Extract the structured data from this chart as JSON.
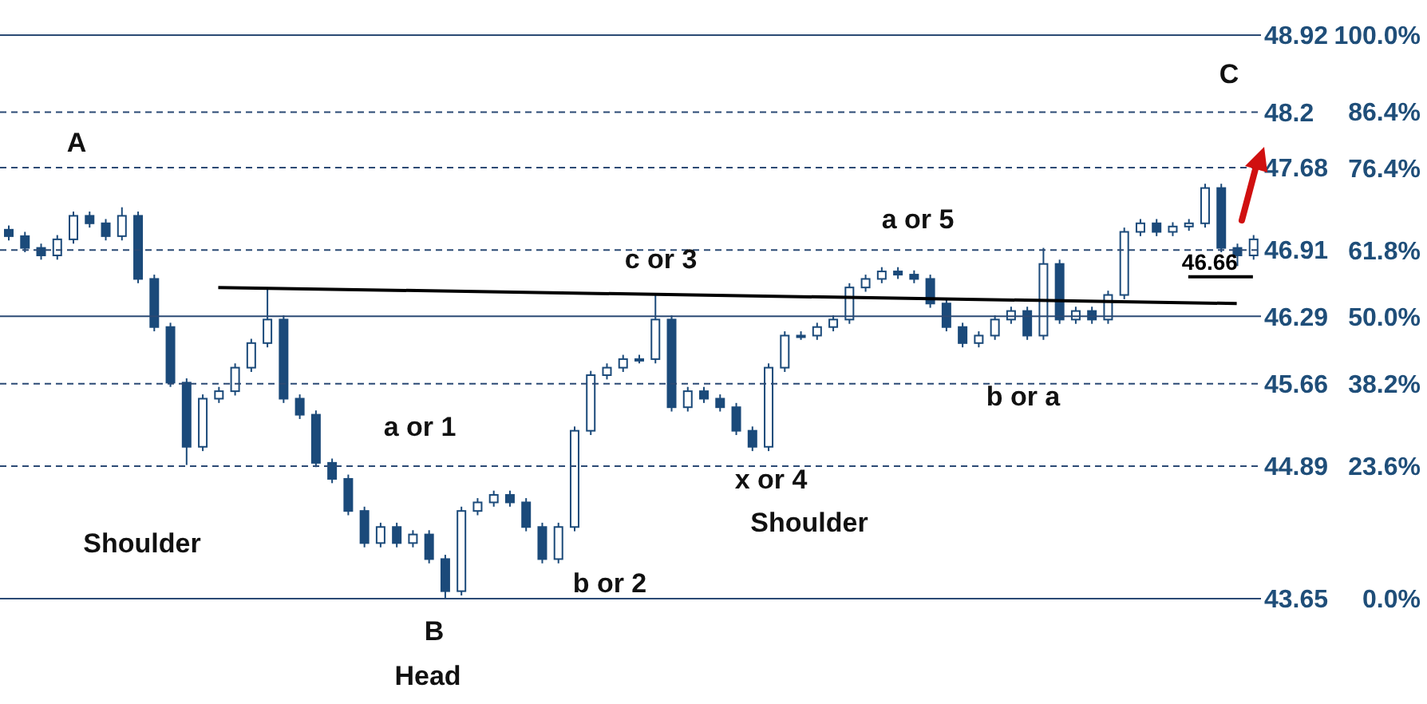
{
  "chart_data": {
    "type": "candlestick",
    "color": "#1b4a7a",
    "tick_labels": "y",
    "ylim": [
      43.65,
      48.92
    ],
    "yticks": [
      43.65,
      44.89,
      45.66,
      46.29,
      46.91,
      47.68,
      48.2,
      48.92
    ],
    "y2lim": [
      0,
      100
    ],
    "y2ticks": [
      {
        "value": 0,
        "label": "0.0%"
      },
      {
        "value": 23.6,
        "label": "23.6%"
      },
      {
        "value": 38.2,
        "label": "38.2%"
      },
      {
        "value": 50,
        "label": "50.0%"
      },
      {
        "value": 61.8,
        "label": "61.8%"
      },
      {
        "value": 76.4,
        "label": "76.4%"
      },
      {
        "value": 86.4,
        "label": "86.4%"
      },
      {
        "value": 100,
        "label": "100.0%"
      }
    ],
    "categories": [
      null,
      null,
      null,
      null,
      null,
      null,
      null,
      null,
      null,
      null,
      null,
      null,
      null,
      null,
      null,
      null,
      null,
      null,
      null,
      null,
      null,
      null,
      null,
      null,
      null,
      null,
      null,
      null,
      null,
      null,
      null,
      null,
      null,
      null,
      null,
      null,
      null,
      null,
      null,
      null,
      null,
      null,
      null,
      null,
      null,
      null,
      null,
      null,
      null,
      null,
      null,
      null,
      null,
      null,
      null,
      null,
      null,
      null,
      null,
      null,
      null,
      null,
      null,
      null,
      null,
      null,
      null,
      null,
      null,
      null,
      null,
      null,
      null,
      null,
      null,
      null,
      null,
      null
    ],
    "ohlc": [
      [
        47.1,
        47.14,
        47.0,
        47.04
      ],
      [
        47.04,
        47.08,
        46.89,
        46.93
      ],
      [
        46.93,
        46.97,
        46.82,
        46.86
      ],
      [
        46.86,
        47.05,
        46.82,
        47.01
      ],
      [
        47.01,
        47.27,
        46.97,
        47.23
      ],
      [
        47.23,
        47.27,
        47.12,
        47.16
      ],
      [
        47.16,
        47.2,
        47.0,
        47.04
      ],
      [
        47.04,
        47.31,
        47.0,
        47.23
      ],
      [
        47.23,
        47.27,
        46.6,
        46.64
      ],
      [
        46.64,
        46.68,
        46.15,
        46.19
      ],
      [
        46.19,
        46.23,
        45.63,
        45.67
      ],
      [
        45.67,
        45.71,
        44.9,
        45.07
      ],
      [
        45.07,
        45.56,
        45.03,
        45.52
      ],
      [
        45.52,
        45.63,
        45.48,
        45.59
      ],
      [
        45.59,
        45.85,
        45.55,
        45.81
      ],
      [
        45.81,
        46.08,
        45.77,
        46.04
      ],
      [
        46.04,
        46.56,
        46.0,
        46.26
      ],
      [
        46.26,
        46.3,
        45.48,
        45.52
      ],
      [
        45.52,
        45.56,
        45.33,
        45.37
      ],
      [
        45.37,
        45.41,
        44.88,
        44.92
      ],
      [
        44.92,
        44.96,
        44.73,
        44.77
      ],
      [
        44.77,
        44.81,
        44.43,
        44.47
      ],
      [
        44.47,
        44.51,
        44.13,
        44.17
      ],
      [
        44.17,
        44.36,
        44.13,
        44.32
      ],
      [
        44.32,
        44.36,
        44.13,
        44.17
      ],
      [
        44.17,
        44.29,
        44.13,
        44.25
      ],
      [
        44.25,
        44.29,
        43.98,
        44.02
      ],
      [
        44.02,
        44.06,
        43.65,
        43.72
      ],
      [
        43.72,
        44.51,
        43.68,
        44.47
      ],
      [
        44.47,
        44.59,
        44.43,
        44.55
      ],
      [
        44.55,
        44.66,
        44.51,
        44.62
      ],
      [
        44.62,
        44.66,
        44.51,
        44.55
      ],
      [
        44.55,
        44.59,
        44.28,
        44.32
      ],
      [
        44.32,
        44.36,
        43.98,
        44.02
      ],
      [
        44.02,
        44.36,
        43.98,
        44.32
      ],
      [
        44.32,
        45.26,
        44.28,
        45.22
      ],
      [
        45.22,
        45.78,
        45.18,
        45.74
      ],
      [
        45.74,
        45.85,
        45.7,
        45.81
      ],
      [
        45.81,
        45.93,
        45.77,
        45.89
      ],
      [
        45.89,
        45.93,
        45.85,
        45.89
      ],
      [
        45.89,
        46.49,
        45.85,
        46.26
      ],
      [
        46.26,
        46.3,
        45.4,
        45.44
      ],
      [
        45.44,
        45.63,
        45.4,
        45.59
      ],
      [
        45.59,
        45.63,
        45.48,
        45.52
      ],
      [
        45.52,
        45.56,
        45.4,
        45.44
      ],
      [
        45.44,
        45.48,
        45.18,
        45.22
      ],
      [
        45.22,
        45.26,
        45.03,
        45.07
      ],
      [
        45.07,
        45.85,
        45.03,
        45.81
      ],
      [
        45.81,
        46.15,
        45.77,
        46.11
      ],
      [
        46.11,
        46.15,
        46.07,
        46.11
      ],
      [
        46.11,
        46.23,
        46.07,
        46.19
      ],
      [
        46.19,
        46.3,
        46.15,
        46.26
      ],
      [
        46.26,
        46.6,
        46.22,
        46.56
      ],
      [
        46.56,
        46.68,
        46.52,
        46.64
      ],
      [
        46.64,
        46.75,
        46.6,
        46.71
      ],
      [
        46.71,
        46.75,
        46.64,
        46.68
      ],
      [
        46.68,
        46.72,
        46.6,
        46.64
      ],
      [
        46.64,
        46.68,
        46.37,
        46.41
      ],
      [
        46.41,
        46.45,
        46.15,
        46.19
      ],
      [
        46.19,
        46.23,
        46.0,
        46.04
      ],
      [
        46.04,
        46.15,
        46.0,
        46.11
      ],
      [
        46.11,
        46.3,
        46.07,
        46.26
      ],
      [
        46.26,
        46.38,
        46.22,
        46.34
      ],
      [
        46.34,
        46.38,
        46.07,
        46.11
      ],
      [
        46.11,
        46.93,
        46.07,
        46.78
      ],
      [
        46.78,
        46.82,
        46.22,
        46.26
      ],
      [
        46.26,
        46.38,
        46.22,
        46.34
      ],
      [
        46.34,
        46.38,
        46.22,
        46.26
      ],
      [
        46.26,
        46.53,
        46.22,
        46.49
      ],
      [
        46.49,
        47.12,
        46.45,
        47.08
      ],
      [
        47.08,
        47.2,
        47.04,
        47.16
      ],
      [
        47.16,
        47.2,
        47.04,
        47.08
      ],
      [
        47.08,
        47.17,
        47.04,
        47.13
      ],
      [
        47.13,
        47.2,
        47.09,
        47.16
      ],
      [
        47.16,
        47.53,
        47.12,
        47.49
      ],
      [
        47.49,
        47.53,
        46.89,
        46.93
      ],
      [
        46.93,
        46.97,
        46.76,
        46.86
      ],
      [
        46.86,
        47.05,
        46.82,
        47.01
      ]
    ],
    "series": [
      {
        "type": "line",
        "color": "#000000",
        "values": [
          null,
          null,
          null,
          null,
          null,
          null,
          null,
          null,
          null,
          null,
          null,
          null,
          null,
          46.56,
          null,
          null,
          null,
          null,
          null,
          null,
          null,
          null,
          null,
          null,
          null,
          null,
          null,
          null,
          null,
          null,
          null,
          null,
          null,
          null,
          null,
          null,
          null,
          null,
          null,
          null,
          null,
          null,
          null,
          null,
          null,
          null,
          null,
          null,
          null,
          null,
          null,
          null,
          null,
          null,
          null,
          null,
          null,
          null,
          null,
          null,
          null,
          null,
          null,
          null,
          null,
          null,
          null,
          null,
          null,
          null,
          null,
          null,
          null,
          null,
          null,
          null,
          46.41,
          null
        ]
      },
      {
        "type": "line",
        "name": "46.66",
        "color": "#000000",
        "values": [
          null,
          null,
          null,
          null,
          null,
          null,
          null,
          null,
          null,
          null,
          null,
          null,
          null,
          null,
          null,
          null,
          null,
          null,
          null,
          null,
          null,
          null,
          null,
          null,
          null,
          null,
          null,
          null,
          null,
          null,
          null,
          null,
          null,
          null,
          null,
          null,
          null,
          null,
          null,
          null,
          null,
          null,
          null,
          null,
          null,
          null,
          null,
          null,
          null,
          null,
          null,
          null,
          null,
          null,
          null,
          null,
          null,
          null,
          null,
          null,
          null,
          null,
          null,
          null,
          null,
          null,
          null,
          null,
          null,
          null,
          null,
          null,
          null,
          46.66,
          null,
          null,
          null,
          46.66
        ]
      }
    ],
    "ref_lines": [
      {
        "axis": "y",
        "value": 48.92,
        "line_style": "solid",
        "color": "#2b4a74"
      },
      {
        "axis": "y",
        "value": 48.2,
        "line_style": "dashed",
        "color": "#2b4a74"
      },
      {
        "axis": "y",
        "value": 47.68,
        "line_style": "dashed",
        "color": "#2b4a74"
      },
      {
        "axis": "y",
        "value": 46.91,
        "line_style": "dashed",
        "color": "#2b4a74"
      },
      {
        "axis": "y",
        "value": 46.29,
        "line_style": "solid",
        "color": "#2b4a74"
      },
      {
        "axis": "y",
        "value": 45.66,
        "line_style": "dashed",
        "color": "#2b4a74"
      },
      {
        "axis": "y",
        "value": 44.89,
        "line_style": "dashed",
        "color": "#2b4a74"
      },
      {
        "axis": "y",
        "value": 43.65,
        "line_style": "solid",
        "color": "#2b4a74"
      }
    ],
    "annotations": [
      "A",
      "B",
      "C",
      "Head",
      "Shoulder",
      "Shoulder",
      "a or 1",
      "b or 2",
      "c or 3",
      "x or 4",
      "a or 5",
      "b or a"
    ]
  }
}
